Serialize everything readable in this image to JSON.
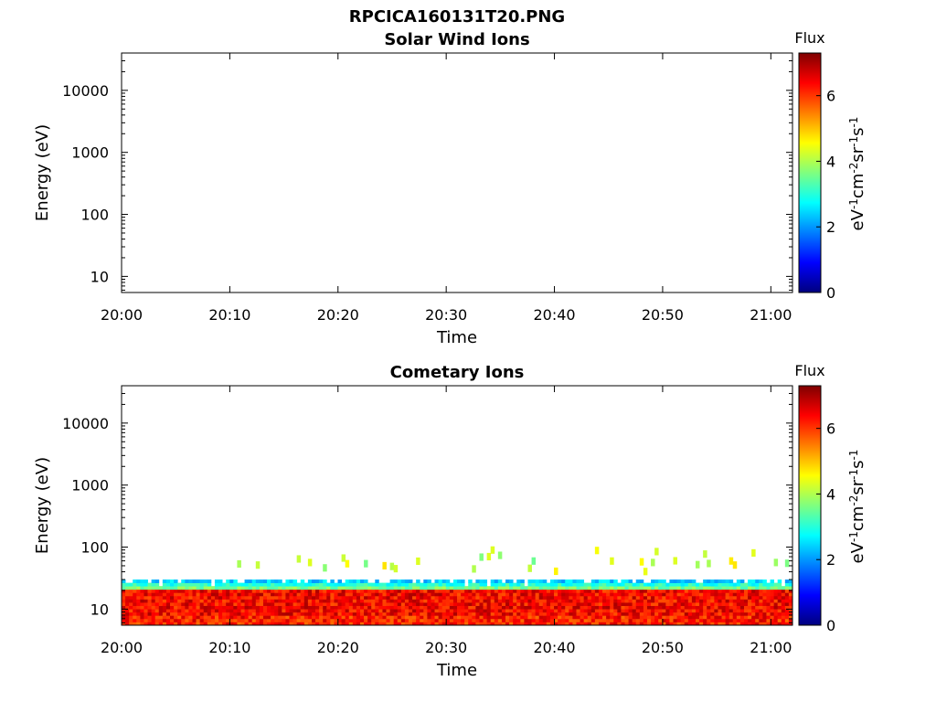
{
  "figure_title": "RPCICA160131T20.PNG",
  "colorbar_colors": [
    "#00007f",
    "#0000ff",
    "#007fff",
    "#00ffff",
    "#7fff7f",
    "#ffff00",
    "#ff7f00",
    "#ff0000",
    "#7f0000"
  ],
  "chart_data": [
    {
      "type": "heatmap",
      "title": "Solar Wind Ions",
      "xlabel": "Time",
      "ylabel": "Energy (eV)",
      "x_ticks": [
        "20:00",
        "20:10",
        "20:20",
        "20:30",
        "20:40",
        "20:50",
        "21:00"
      ],
      "x_range": [
        "20:00",
        "21:02"
      ],
      "y_scale": "log",
      "y_ticks": [
        "10",
        "100",
        "1000",
        "10000"
      ],
      "y_range": [
        5.5,
        40000
      ],
      "colorbar": {
        "title": "Flux",
        "label": "eV-1cm-2sr-1s-1",
        "ticks": [
          "0",
          "2",
          "4",
          "6"
        ],
        "range": [
          0,
          7.3
        ]
      },
      "populated_energy_range_ev": null,
      "peak_energy_range_ev": null
    },
    {
      "type": "heatmap",
      "title": "Cometary Ions",
      "xlabel": "Time",
      "ylabel": "Energy (eV)",
      "x_ticks": [
        "20:00",
        "20:10",
        "20:20",
        "20:30",
        "20:40",
        "20:50",
        "21:00"
      ],
      "x_range": [
        "20:00",
        "21:02"
      ],
      "y_scale": "log",
      "y_ticks": [
        "10",
        "100",
        "1000",
        "10000"
      ],
      "y_range": [
        5.5,
        40000
      ],
      "colorbar": {
        "title": "Flux",
        "label": "eV-1cm-2sr-1s-1",
        "ticks": [
          "0",
          "2",
          "4",
          "6"
        ],
        "range": [
          0,
          7.3
        ]
      },
      "populated_energy_range_ev": [
        5.5,
        30
      ],
      "peak_energy_range_ev": [
        8,
        20
      ],
      "peak_flux": 7.0,
      "sparse_high_energy_range_ev": [
        40,
        90
      ],
      "sparse_high_energy_flux": 3.5
    }
  ]
}
